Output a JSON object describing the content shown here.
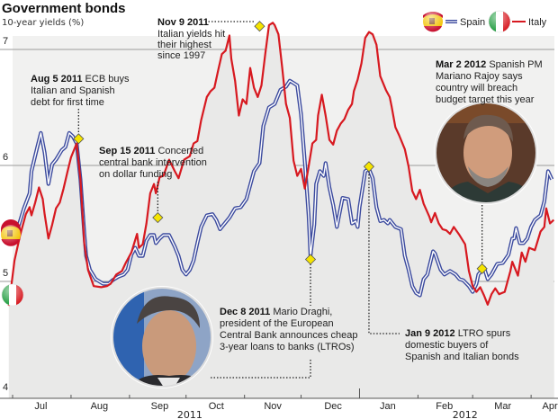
{
  "chart_data": {
    "type": "line",
    "title": "Government bonds",
    "subtitle": "10-year yields (%)",
    "xlabel": "",
    "ylabel": "10-year yields (%)",
    "ylim": [
      4,
      7.35
    ],
    "yticks": [
      4,
      5,
      6,
      7
    ],
    "ytick_labels": [
      "4",
      "5",
      "6",
      "7"
    ],
    "grid": true,
    "x_unit": "days since 1 Jul 2011",
    "xlim": [
      0,
      287
    ],
    "month_ticks": [
      0,
      31,
      62,
      92,
      123,
      153,
      184,
      215,
      244,
      275
    ],
    "month_labels": [
      {
        "label": "Jul",
        "day": 15
      },
      {
        "label": "Aug",
        "day": 46
      },
      {
        "label": "Sep",
        "day": 78
      },
      {
        "label": "Oct",
        "day": 108
      },
      {
        "label": "Nov",
        "day": 138
      },
      {
        "label": "Dec",
        "day": 170
      },
      {
        "label": "Jan",
        "day": 199
      },
      {
        "label": "Feb",
        "day": 229
      },
      {
        "label": "Mar",
        "day": 260
      },
      {
        "label": "Apr",
        "day": 285
      }
    ],
    "year_labels": [
      {
        "label": "2011",
        "day": 94
      },
      {
        "label": "2012",
        "day": 240
      }
    ],
    "legend": {
      "position": "top-right",
      "entries": [
        {
          "name": "Spain",
          "color": "#3b4a9e",
          "flag": "spain-flag"
        },
        {
          "name": "Italy",
          "color": "#d71920",
          "flag": "italy-flag"
        }
      ]
    },
    "series": [
      {
        "name": "Spain",
        "color": "#3b4a9e",
        "points": [
          [
            3,
            5.47
          ],
          [
            6,
            5.63
          ],
          [
            9,
            5.76
          ],
          [
            10,
            5.95
          ],
          [
            13,
            6.15
          ],
          [
            15,
            6.28
          ],
          [
            17,
            6.11
          ],
          [
            19,
            5.84
          ],
          [
            21,
            6.01
          ],
          [
            23,
            6.05
          ],
          [
            26,
            6.13
          ],
          [
            28,
            6.16
          ],
          [
            30,
            6.28
          ],
          [
            32,
            6.25
          ],
          [
            34,
            6.19
          ],
          [
            36,
            5.88
          ],
          [
            38,
            5.42
          ],
          [
            39,
            5.22
          ],
          [
            41,
            5.1
          ],
          [
            44,
            5.02
          ],
          [
            48,
            4.98
          ],
          [
            51,
            4.98
          ],
          [
            53,
            5.01
          ],
          [
            56,
            5.04
          ],
          [
            59,
            5.06
          ],
          [
            61,
            5.1
          ],
          [
            63,
            5.23
          ],
          [
            65,
            5.29
          ],
          [
            67,
            5.22
          ],
          [
            69,
            5.22
          ],
          [
            71,
            5.35
          ],
          [
            73,
            5.4
          ],
          [
            75,
            5.4
          ],
          [
            76,
            5.33
          ],
          [
            78,
            5.37
          ],
          [
            80,
            5.4
          ],
          [
            83,
            5.4
          ],
          [
            86,
            5.3
          ],
          [
            88,
            5.22
          ],
          [
            90,
            5.1
          ],
          [
            92,
            5.06
          ],
          [
            94,
            5.1
          ],
          [
            96,
            5.18
          ],
          [
            98,
            5.33
          ],
          [
            100,
            5.47
          ],
          [
            103,
            5.57
          ],
          [
            106,
            5.58
          ],
          [
            108,
            5.53
          ],
          [
            110,
            5.45
          ],
          [
            112,
            5.49
          ],
          [
            115,
            5.55
          ],
          [
            118,
            5.63
          ],
          [
            121,
            5.64
          ],
          [
            124,
            5.71
          ],
          [
            126,
            5.83
          ],
          [
            128,
            5.95
          ],
          [
            131,
            6.02
          ],
          [
            133,
            6.34
          ],
          [
            136,
            6.5
          ],
          [
            139,
            6.53
          ],
          [
            141,
            6.61
          ],
          [
            142,
            6.65
          ],
          [
            145,
            6.68
          ],
          [
            147,
            6.73
          ],
          [
            149,
            6.71
          ],
          [
            151,
            6.69
          ],
          [
            153,
            6.44
          ],
          [
            155,
            6.03
          ],
          [
            157,
            5.57
          ],
          [
            158,
            5.22
          ],
          [
            160,
            5.49
          ],
          [
            161,
            5.84
          ],
          [
            163,
            5.95
          ],
          [
            165,
            5.91
          ],
          [
            166,
            6.02
          ],
          [
            168,
            5.81
          ],
          [
            170,
            5.66
          ],
          [
            172,
            5.47
          ],
          [
            175,
            5.72
          ],
          [
            178,
            5.71
          ],
          [
            180,
            5.5
          ],
          [
            182,
            5.52
          ],
          [
            183,
            5.47
          ],
          [
            184,
            5.64
          ],
          [
            187,
            5.95
          ],
          [
            189,
            5.97
          ],
          [
            191,
            5.89
          ],
          [
            193,
            5.64
          ],
          [
            195,
            5.52
          ],
          [
            197,
            5.53
          ],
          [
            199,
            5.5
          ],
          [
            200,
            5.53
          ],
          [
            203,
            5.47
          ],
          [
            206,
            5.45
          ],
          [
            208,
            5.22
          ],
          [
            210,
            5.1
          ],
          [
            212,
            4.96
          ],
          [
            214,
            4.9
          ],
          [
            216,
            4.88
          ],
          [
            218,
            5.02
          ],
          [
            220,
            5.06
          ],
          [
            223,
            5.26
          ],
          [
            224,
            5.24
          ],
          [
            227,
            5.1
          ],
          [
            229,
            5.06
          ],
          [
            232,
            5.09
          ],
          [
            235,
            5.06
          ],
          [
            237,
            5.02
          ],
          [
            239,
            5.01
          ],
          [
            242,
            4.96
          ],
          [
            244,
            4.91
          ],
          [
            246,
            4.98
          ],
          [
            247,
            5.06
          ],
          [
            250,
            5.12
          ],
          [
            252,
            5.02
          ],
          [
            254,
            5.06
          ],
          [
            257,
            5.15
          ],
          [
            260,
            5.16
          ],
          [
            263,
            5.23
          ],
          [
            265,
            5.37
          ],
          [
            266,
            5.37
          ],
          [
            267,
            5.46
          ],
          [
            269,
            5.33
          ],
          [
            271,
            5.33
          ],
          [
            273,
            5.37
          ],
          [
            275,
            5.47
          ],
          [
            277,
            5.53
          ],
          [
            280,
            5.57
          ],
          [
            282,
            5.69
          ],
          [
            284,
            5.95
          ],
          [
            286,
            5.88
          ]
        ]
      },
      {
        "name": "Italy",
        "color": "#d71920",
        "points": [
          [
            -2,
            4.79
          ],
          [
            1,
            5.18
          ],
          [
            4,
            5.4
          ],
          [
            7,
            5.58
          ],
          [
            9,
            5.64
          ],
          [
            10,
            5.57
          ],
          [
            12,
            5.68
          ],
          [
            14,
            5.81
          ],
          [
            16,
            5.71
          ],
          [
            17,
            5.58
          ],
          [
            19,
            5.37
          ],
          [
            21,
            5.49
          ],
          [
            23,
            5.63
          ],
          [
            25,
            5.68
          ],
          [
            27,
            5.8
          ],
          [
            29,
            5.94
          ],
          [
            31,
            6.07
          ],
          [
            33,
            6.15
          ],
          [
            34,
            6.19
          ],
          [
            36,
            5.88
          ],
          [
            38,
            5.33
          ],
          [
            40,
            5.1
          ],
          [
            43,
            4.96
          ],
          [
            47,
            4.95
          ],
          [
            50,
            4.96
          ],
          [
            52,
            4.98
          ],
          [
            55,
            5.06
          ],
          [
            58,
            5.09
          ],
          [
            60,
            5.16
          ],
          [
            63,
            5.25
          ],
          [
            66,
            5.41
          ],
          [
            67,
            5.29
          ],
          [
            69,
            5.32
          ],
          [
            71,
            5.5
          ],
          [
            73,
            5.76
          ],
          [
            75,
            5.84
          ],
          [
            76,
            5.76
          ],
          [
            78,
            5.9
          ],
          [
            80,
            5.91
          ],
          [
            83,
            6.05
          ],
          [
            86,
            5.95
          ],
          [
            88,
            5.89
          ],
          [
            91,
            6.05
          ],
          [
            94,
            6.08
          ],
          [
            96,
            6.19
          ],
          [
            98,
            6.21
          ],
          [
            100,
            6.39
          ],
          [
            103,
            6.59
          ],
          [
            105,
            6.64
          ],
          [
            107,
            6.67
          ],
          [
            109,
            6.82
          ],
          [
            111,
            6.96
          ],
          [
            113,
            6.99
          ],
          [
            115,
            7.12
          ],
          [
            116,
            6.92
          ],
          [
            118,
            6.73
          ],
          [
            120,
            6.43
          ],
          [
            122,
            6.57
          ],
          [
            124,
            6.53
          ],
          [
            126,
            6.84
          ],
          [
            128,
            6.67
          ],
          [
            130,
            6.59
          ],
          [
            132,
            6.69
          ],
          [
            134,
            6.96
          ],
          [
            136,
            7.21
          ],
          [
            138,
            7.23
          ],
          [
            139,
            7.21
          ],
          [
            141,
            7.13
          ],
          [
            143,
            6.84
          ],
          [
            145,
            6.53
          ],
          [
            147,
            6.41
          ],
          [
            149,
            6.04
          ],
          [
            151,
            5.91
          ],
          [
            153,
            5.97
          ],
          [
            155,
            5.8
          ],
          [
            157,
            5.99
          ],
          [
            159,
            6.19
          ],
          [
            161,
            6.22
          ],
          [
            162,
            6.43
          ],
          [
            164,
            6.61
          ],
          [
            166,
            6.43
          ],
          [
            168,
            6.22
          ],
          [
            170,
            6.18
          ],
          [
            172,
            6.3
          ],
          [
            174,
            6.36
          ],
          [
            176,
            6.4
          ],
          [
            178,
            6.48
          ],
          [
            180,
            6.53
          ],
          [
            181,
            6.64
          ],
          [
            183,
            6.74
          ],
          [
            185,
            6.88
          ],
          [
            187,
            7.1
          ],
          [
            189,
            7.15
          ],
          [
            191,
            7.13
          ],
          [
            193,
            7.04
          ],
          [
            195,
            6.77
          ],
          [
            198,
            6.65
          ],
          [
            200,
            6.59
          ],
          [
            201,
            6.51
          ],
          [
            203,
            6.33
          ],
          [
            205,
            6.26
          ],
          [
            208,
            6.14
          ],
          [
            210,
            5.99
          ],
          [
            212,
            5.78
          ],
          [
            214,
            5.71
          ],
          [
            216,
            5.79
          ],
          [
            218,
            5.67
          ],
          [
            221,
            5.56
          ],
          [
            222,
            5.51
          ],
          [
            224,
            5.59
          ],
          [
            226,
            5.5
          ],
          [
            228,
            5.45
          ],
          [
            230,
            5.44
          ],
          [
            232,
            5.41
          ],
          [
            234,
            5.47
          ],
          [
            237,
            5.4
          ],
          [
            240,
            5.32
          ],
          [
            242,
            5.09
          ],
          [
            244,
            4.96
          ],
          [
            246,
            4.91
          ],
          [
            248,
            4.95
          ],
          [
            250,
            4.88
          ],
          [
            252,
            4.8
          ],
          [
            254,
            4.89
          ],
          [
            256,
            4.94
          ],
          [
            258,
            4.89
          ],
          [
            261,
            4.91
          ],
          [
            264,
            5.09
          ],
          [
            265,
            5.17
          ],
          [
            268,
            5.05
          ],
          [
            270,
            5.25
          ],
          [
            272,
            5.17
          ],
          [
            274,
            5.29
          ],
          [
            277,
            5.27
          ],
          [
            280,
            5.43
          ],
          [
            282,
            5.47
          ],
          [
            283,
            5.63
          ],
          [
            285,
            5.5
          ],
          [
            287,
            5.53
          ]
        ]
      }
    ],
    "annotations": [
      {
        "id": "aug5",
        "date_label": "Aug 5 2011",
        "text_lines": [
          "ECB buys",
          "Italian and Spanish",
          "debt for first time"
        ],
        "day": 35,
        "value": 6.23,
        "series": "Spain"
      },
      {
        "id": "sep15",
        "date_label": "Sep 15 2011",
        "text_lines": [
          "Concerted",
          "central bank intervention",
          "on dollar funding"
        ],
        "day": 77,
        "value": 5.55,
        "series": "Italy"
      },
      {
        "id": "nov9",
        "date_label": "Nov 9 2011",
        "text_lines": [
          "Italian yields hit",
          "their highest",
          "since 1997"
        ],
        "day": 131,
        "value": 7.2,
        "series": "Italy"
      },
      {
        "id": "dec8",
        "date_label": "Dec 8 2011",
        "text_lines": [
          "Mario Draghi,",
          "president of the European",
          "Central Bank announces cheap",
          "3-year loans to banks (LTROs)"
        ],
        "day": 158,
        "value": 5.19,
        "series": "Spain",
        "photo": "mario-draghi-photo"
      },
      {
        "id": "jan9",
        "date_label": "Jan 9 2012",
        "text_lines": [
          "LTRO spurs",
          "domestic buyers of",
          "Spanish and Italian bonds"
        ],
        "day": 189,
        "value": 5.99,
        "series": "Spain"
      },
      {
        "id": "mar2",
        "date_label": "Mar 2 2012",
        "text_lines": [
          "Spanish PM",
          "Mariano Rajoy says",
          "country will breach",
          "budget target this year"
        ],
        "day": 249,
        "value": 5.11,
        "series": "Spain",
        "photo": "mariano-rajoy-photo"
      }
    ]
  }
}
